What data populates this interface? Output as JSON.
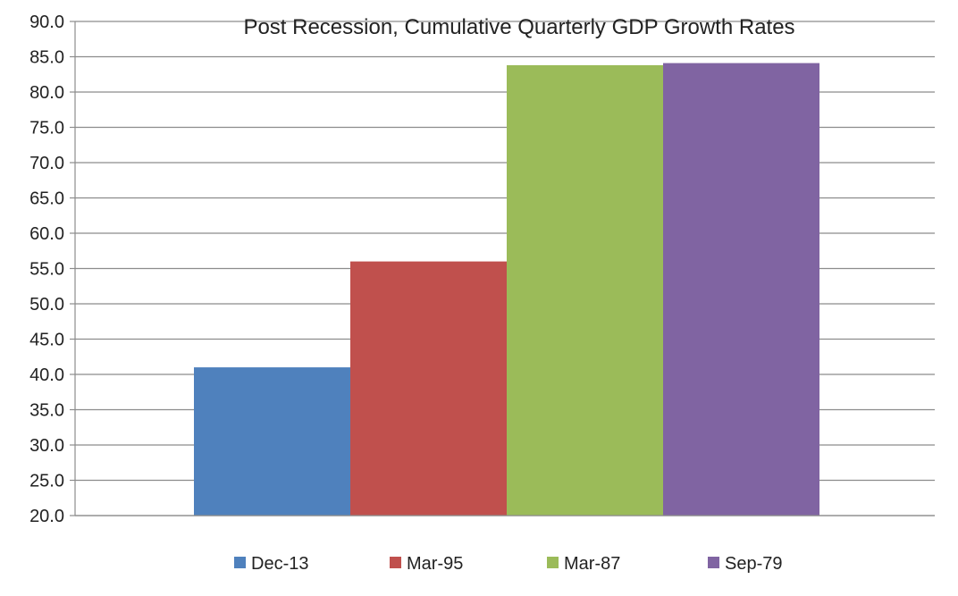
{
  "chart_data": {
    "type": "bar",
    "title": "Post Recession, Cumulative Quarterly GDP Growth Rates",
    "xlabel": "",
    "ylabel": "",
    "ylim": [
      20.0,
      90.0
    ],
    "ytick_step": 5,
    "y_tick_labels": [
      "20.0",
      "25.0",
      "30.0",
      "35.0",
      "40.0",
      "45.0",
      "50.0",
      "55.0",
      "60.0",
      "65.0",
      "70.0",
      "75.0",
      "80.0",
      "85.0",
      "90.0"
    ],
    "grid": true,
    "legend_position": "bottom",
    "series": [
      {
        "name": "Dec-13",
        "value": 41.0,
        "color": "#4F81BD"
      },
      {
        "name": "Mar-95",
        "value": 56.0,
        "color": "#C0504D"
      },
      {
        "name": "Mar-87",
        "value": 83.8,
        "color": "#9BBB59"
      },
      {
        "name": "Sep-79",
        "value": 84.1,
        "color": "#8064A2"
      }
    ]
  }
}
